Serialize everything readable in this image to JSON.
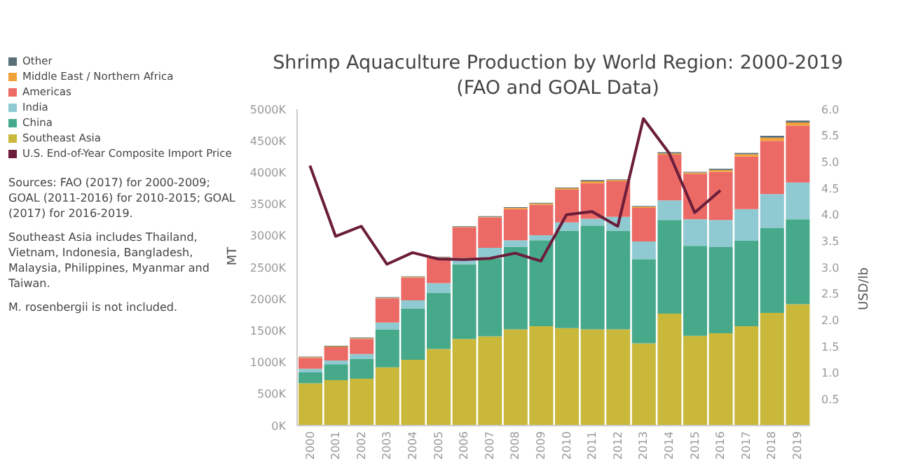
{
  "chart_data": {
    "type": "bar",
    "title": "Shrimp Aquaculture Production by World Region: 2000-2019 (FAO and GOAL Data)",
    "ylabel": "MT",
    "y2label": "USD/lb",
    "stacked": true,
    "legend": "left",
    "marker": "none",
    "categories": [
      "2000",
      "2001",
      "2002",
      "2003",
      "2004",
      "2005",
      "2006",
      "2007",
      "2008",
      "2009",
      "2010",
      "2011",
      "2012",
      "2013",
      "2014",
      "2015",
      "2016",
      "2017",
      "2018",
      "2019"
    ],
    "series": [
      {
        "name": "Southeast Asia",
        "color": "#c9b83a",
        "values": [
          670000,
          720000,
          740000,
          920000,
          1040000,
          1210000,
          1370000,
          1410000,
          1520000,
          1570000,
          1540000,
          1520000,
          1520000,
          1300000,
          1770000,
          1420000,
          1460000,
          1570000,
          1780000,
          1920000
        ]
      },
      {
        "name": "China",
        "color": "#45a98a",
        "values": [
          170000,
          250000,
          310000,
          600000,
          810000,
          890000,
          1180000,
          1230000,
          1300000,
          1360000,
          1540000,
          1640000,
          1560000,
          1330000,
          1480000,
          1420000,
          1360000,
          1350000,
          1340000,
          1340000
        ]
      },
      {
        "name": "India",
        "color": "#8fc9d1",
        "values": [
          60000,
          60000,
          80000,
          110000,
          130000,
          150000,
          100000,
          170000,
          110000,
          80000,
          130000,
          110000,
          220000,
          280000,
          310000,
          420000,
          430000,
          500000,
          540000,
          580000
        ]
      },
      {
        "name": "Americas",
        "color": "#ec6a66",
        "values": [
          170000,
          210000,
          240000,
          380000,
          360000,
          400000,
          480000,
          480000,
          490000,
          480000,
          520000,
          560000,
          560000,
          530000,
          720000,
          720000,
          760000,
          830000,
          840000,
          900000
        ]
      },
      {
        "name": "Middle East / Northern Africa",
        "color": "#f2a23a",
        "values": [
          10000,
          10000,
          10000,
          10000,
          10000,
          10000,
          10000,
          10000,
          20000,
          20000,
          20000,
          30000,
          20000,
          20000,
          20000,
          20000,
          30000,
          40000,
          50000,
          50000
        ]
      },
      {
        "name": "Other",
        "color": "#5a6e78",
        "values": [
          10000,
          10000,
          10000,
          10000,
          10000,
          10000,
          10000,
          10000,
          10000,
          10000,
          10000,
          20000,
          10000,
          10000,
          20000,
          10000,
          20000,
          20000,
          30000,
          30000
        ]
      },
      {
        "name": "U.S. End-of-Year Composite Import Price",
        "type": "line",
        "axis": "y2",
        "color": "#6b1d3a",
        "values": [
          4.93,
          3.59,
          3.78,
          3.06,
          3.28,
          3.16,
          3.15,
          3.17,
          3.27,
          3.12,
          4.0,
          4.06,
          3.78,
          5.82,
          5.17,
          4.04,
          4.46,
          null,
          null,
          null
        ]
      }
    ],
    "ylim": [
      0,
      5000000
    ],
    "yticks": [
      {
        "value": 0,
        "label": "0K"
      },
      {
        "value": 500000,
        "label": "500K"
      },
      {
        "value": 1000000,
        "label": "1000K"
      },
      {
        "value": 1500000,
        "label": "1500K"
      },
      {
        "value": 2000000,
        "label": "2000K"
      },
      {
        "value": 2500000,
        "label": "2500K"
      },
      {
        "value": 3000000,
        "label": "3000K"
      },
      {
        "value": 3500000,
        "label": "3500K"
      },
      {
        "value": 4000000,
        "label": "4000K"
      },
      {
        "value": 4500000,
        "label": "4500K"
      },
      {
        "value": 5000000,
        "label": "5000K"
      }
    ],
    "y2lim": [
      0,
      6
    ],
    "y2ticks": [
      {
        "value": 0.5,
        "label": "0.5"
      },
      {
        "value": 1,
        "label": "1.0"
      },
      {
        "value": 1.5,
        "label": "1.5"
      },
      {
        "value": 2,
        "label": "2.0"
      },
      {
        "value": 2.5,
        "label": "2.5"
      },
      {
        "value": 3,
        "label": "3.0"
      },
      {
        "value": 3.5,
        "label": "3.5"
      },
      {
        "value": 4,
        "label": "4.0"
      },
      {
        "value": 4.5,
        "label": "4.5"
      },
      {
        "value": 5,
        "label": "5.0"
      },
      {
        "value": 5.5,
        "label": "5.5"
      },
      {
        "value": 6,
        "label": "6.0"
      }
    ],
    "annotations": [
      "Sources:  FAO (2017) for 2000-2009; GOAL (2011-2016) for 2010-2015; GOAL (2017) for 2016-2019.",
      "Southeast Asia includes Thailand, Vietnam, Indonesia, Bangladesh, Malaysia, Philippines, Myanmar and Taiwan.",
      "M. rosenbergii is not included."
    ]
  }
}
